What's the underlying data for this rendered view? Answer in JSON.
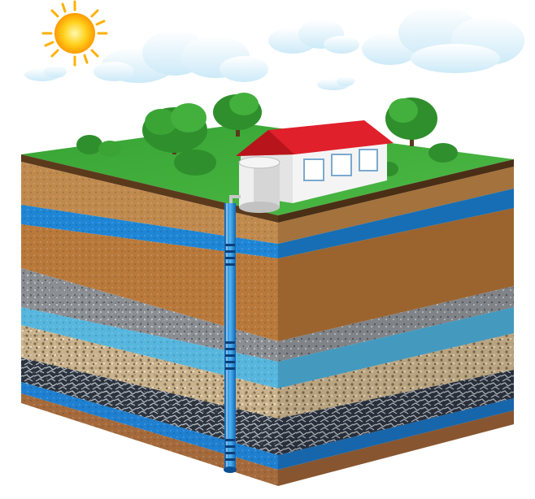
{
  "scene": {
    "subject": "groundwater-well-cross-section",
    "sky": {
      "background": "#ffffff",
      "cloud_color": "#e8f6fd",
      "sun_color": "#ffd21e",
      "sun_glow": "#ff9a00"
    },
    "ground": {
      "grass_color": "#3fae3a",
      "layers": [
        {
          "kind": "topsoil",
          "color": "#8a5a2b"
        },
        {
          "kind": "clay",
          "color": "#c08a4e"
        },
        {
          "kind": "aquifer",
          "color": "#1f86d6"
        },
        {
          "kind": "sandy-soil",
          "color": "#b9793b"
        },
        {
          "kind": "gravel",
          "color": "#8b8f93"
        },
        {
          "kind": "aquifer",
          "color": "#57b6dd"
        },
        {
          "kind": "sand-gravel",
          "color": "#c9b28c"
        },
        {
          "kind": "rock",
          "color": "#2c3440"
        },
        {
          "kind": "aquifer",
          "color": "#1f7fd0"
        },
        {
          "kind": "bedrock",
          "color": "#a46a3c"
        }
      ]
    },
    "structures": [
      {
        "kind": "house",
        "roof_color": "#e0202a",
        "wall_color": "#f2f2f2"
      },
      {
        "kind": "water-tank",
        "color": "#dcdcdc"
      },
      {
        "kind": "well-pipe",
        "color": "#1f8ee0"
      }
    ]
  }
}
